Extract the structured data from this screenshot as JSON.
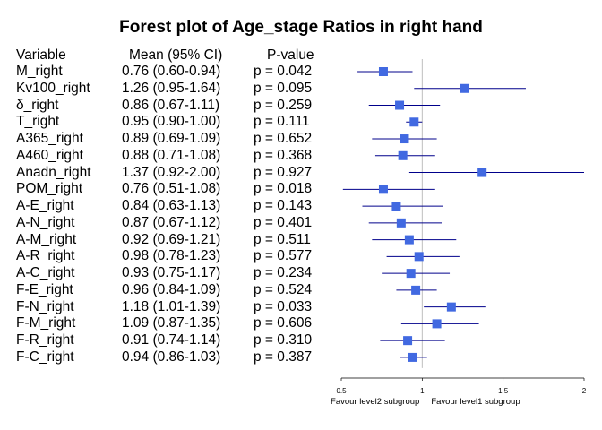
{
  "chart_data": {
    "type": "forest",
    "title": "Forest plot of Age_stage Ratios in right hand",
    "columns": [
      "Variable",
      "Mean (95% CI)",
      "P-value"
    ],
    "rows": [
      {
        "variable": "M_right",
        "mean_ci": "0.76 (0.60-0.94)",
        "p": "p = 0.042",
        "mean": 0.76,
        "lo": 0.6,
        "hi": 0.94
      },
      {
        "variable": "Kv100_right",
        "mean_ci": "1.26 (0.95-1.64)",
        "p": "p = 0.095",
        "mean": 1.26,
        "lo": 0.95,
        "hi": 1.64
      },
      {
        "variable": "δ_right",
        "mean_ci": "0.86 (0.67-1.11)",
        "p": "p = 0.259",
        "mean": 0.86,
        "lo": 0.67,
        "hi": 1.11
      },
      {
        "variable": "T_right",
        "mean_ci": "0.95 (0.90-1.00)",
        "p": "p = 0.111",
        "mean": 0.95,
        "lo": 0.9,
        "hi": 1.0
      },
      {
        "variable": "A365_right",
        "mean_ci": "0.89 (0.69-1.09)",
        "p": "p = 0.652",
        "mean": 0.89,
        "lo": 0.69,
        "hi": 1.09
      },
      {
        "variable": "A460_right",
        "mean_ci": "0.88 (0.71-1.08)",
        "p": "p = 0.368",
        "mean": 0.88,
        "lo": 0.71,
        "hi": 1.08
      },
      {
        "variable": "Anadn_right",
        "mean_ci": "1.37 (0.92-2.00)",
        "p": "p = 0.927",
        "mean": 1.37,
        "lo": 0.92,
        "hi": 2.0
      },
      {
        "variable": "POM_right",
        "mean_ci": "0.76 (0.51-1.08)",
        "p": "p = 0.018",
        "mean": 0.76,
        "lo": 0.51,
        "hi": 1.08
      },
      {
        "variable": "A-E_right",
        "mean_ci": "0.84 (0.63-1.13)",
        "p": "p = 0.143",
        "mean": 0.84,
        "lo": 0.63,
        "hi": 1.13
      },
      {
        "variable": "A-N_right",
        "mean_ci": "0.87 (0.67-1.12)",
        "p": "p = 0.401",
        "mean": 0.87,
        "lo": 0.67,
        "hi": 1.12
      },
      {
        "variable": "A-M_right",
        "mean_ci": "0.92 (0.69-1.21)",
        "p": "p = 0.511",
        "mean": 0.92,
        "lo": 0.69,
        "hi": 1.21
      },
      {
        "variable": "A-R_right",
        "mean_ci": "0.98 (0.78-1.23)",
        "p": "p = 0.577",
        "mean": 0.98,
        "lo": 0.78,
        "hi": 1.23
      },
      {
        "variable": "A-C_right",
        "mean_ci": "0.93 (0.75-1.17)",
        "p": "p = 0.234",
        "mean": 0.93,
        "lo": 0.75,
        "hi": 1.17
      },
      {
        "variable": "F-E_right",
        "mean_ci": "0.96 (0.84-1.09)",
        "p": "p = 0.524",
        "mean": 0.96,
        "lo": 0.84,
        "hi": 1.09
      },
      {
        "variable": "F-N_right",
        "mean_ci": "1.18 (1.01-1.39)",
        "p": "p = 0.033",
        "mean": 1.18,
        "lo": 1.01,
        "hi": 1.39
      },
      {
        "variable": "F-M_right",
        "mean_ci": "1.09 (0.87-1.35)",
        "p": "p = 0.606",
        "mean": 1.09,
        "lo": 0.87,
        "hi": 1.35
      },
      {
        "variable": "F-R_right",
        "mean_ci": "0.91 (0.74-1.14)",
        "p": "p = 0.310",
        "mean": 0.91,
        "lo": 0.74,
        "hi": 1.14
      },
      {
        "variable": "F-C_right",
        "mean_ci": "0.94 (0.86-1.03)",
        "p": "p = 0.387",
        "mean": 0.94,
        "lo": 0.86,
        "hi": 1.03
      }
    ],
    "xlim": [
      0.5,
      2
    ],
    "xticks": [
      "0.5",
      "1",
      "1.5",
      "2"
    ],
    "reference_line": 1,
    "favour_left": "Favour level2 subgroup",
    "favour_right": "Favour level1 subgroup",
    "marker_color": "#4169E1",
    "line_color": "#00008B",
    "reference_color": "#BEBEBE"
  }
}
